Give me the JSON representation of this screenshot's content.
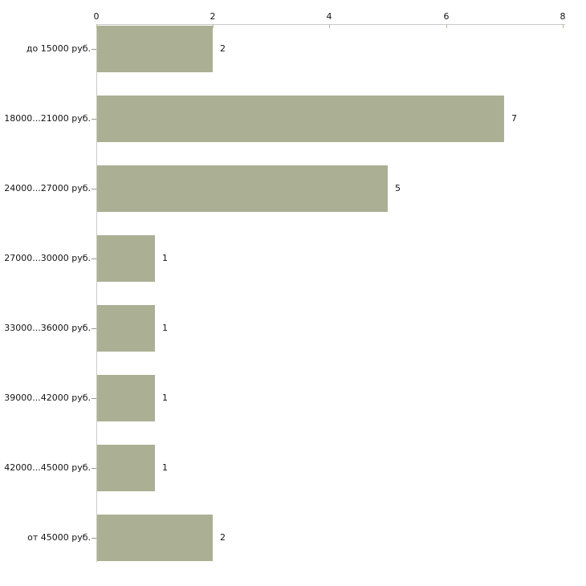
{
  "chart_data": {
    "type": "bar",
    "orientation": "horizontal",
    "title": "",
    "xlabel": "",
    "ylabel": "",
    "categories": [
      "до 15000 руб.",
      "18000...21000 руб.",
      "24000...27000 руб.",
      "27000...30000 руб.",
      "33000...36000 руб.",
      "39000...42000 руб.",
      "42000...45000 руб.",
      "от 45000 руб."
    ],
    "values": [
      2,
      7,
      5,
      1,
      1,
      1,
      1,
      2
    ],
    "value_labels": [
      "2",
      "7",
      "5",
      "1",
      "1",
      "1",
      "1",
      "2"
    ],
    "xlim": [
      0,
      8
    ],
    "x_ticks": [
      "0",
      "2",
      "4",
      "6",
      "8"
    ],
    "x_tick_values": [
      0,
      2,
      4,
      6,
      8
    ],
    "axis_position": "top",
    "grid": false,
    "legend_position": "none",
    "colors": {
      "bar_fill": "#abb094",
      "axis_line": "#c9c9c9",
      "x_tick_mark": "#b7bb9d",
      "category_tick_mark": "#99998c",
      "text": "#141414",
      "background": "#ffffff"
    }
  }
}
